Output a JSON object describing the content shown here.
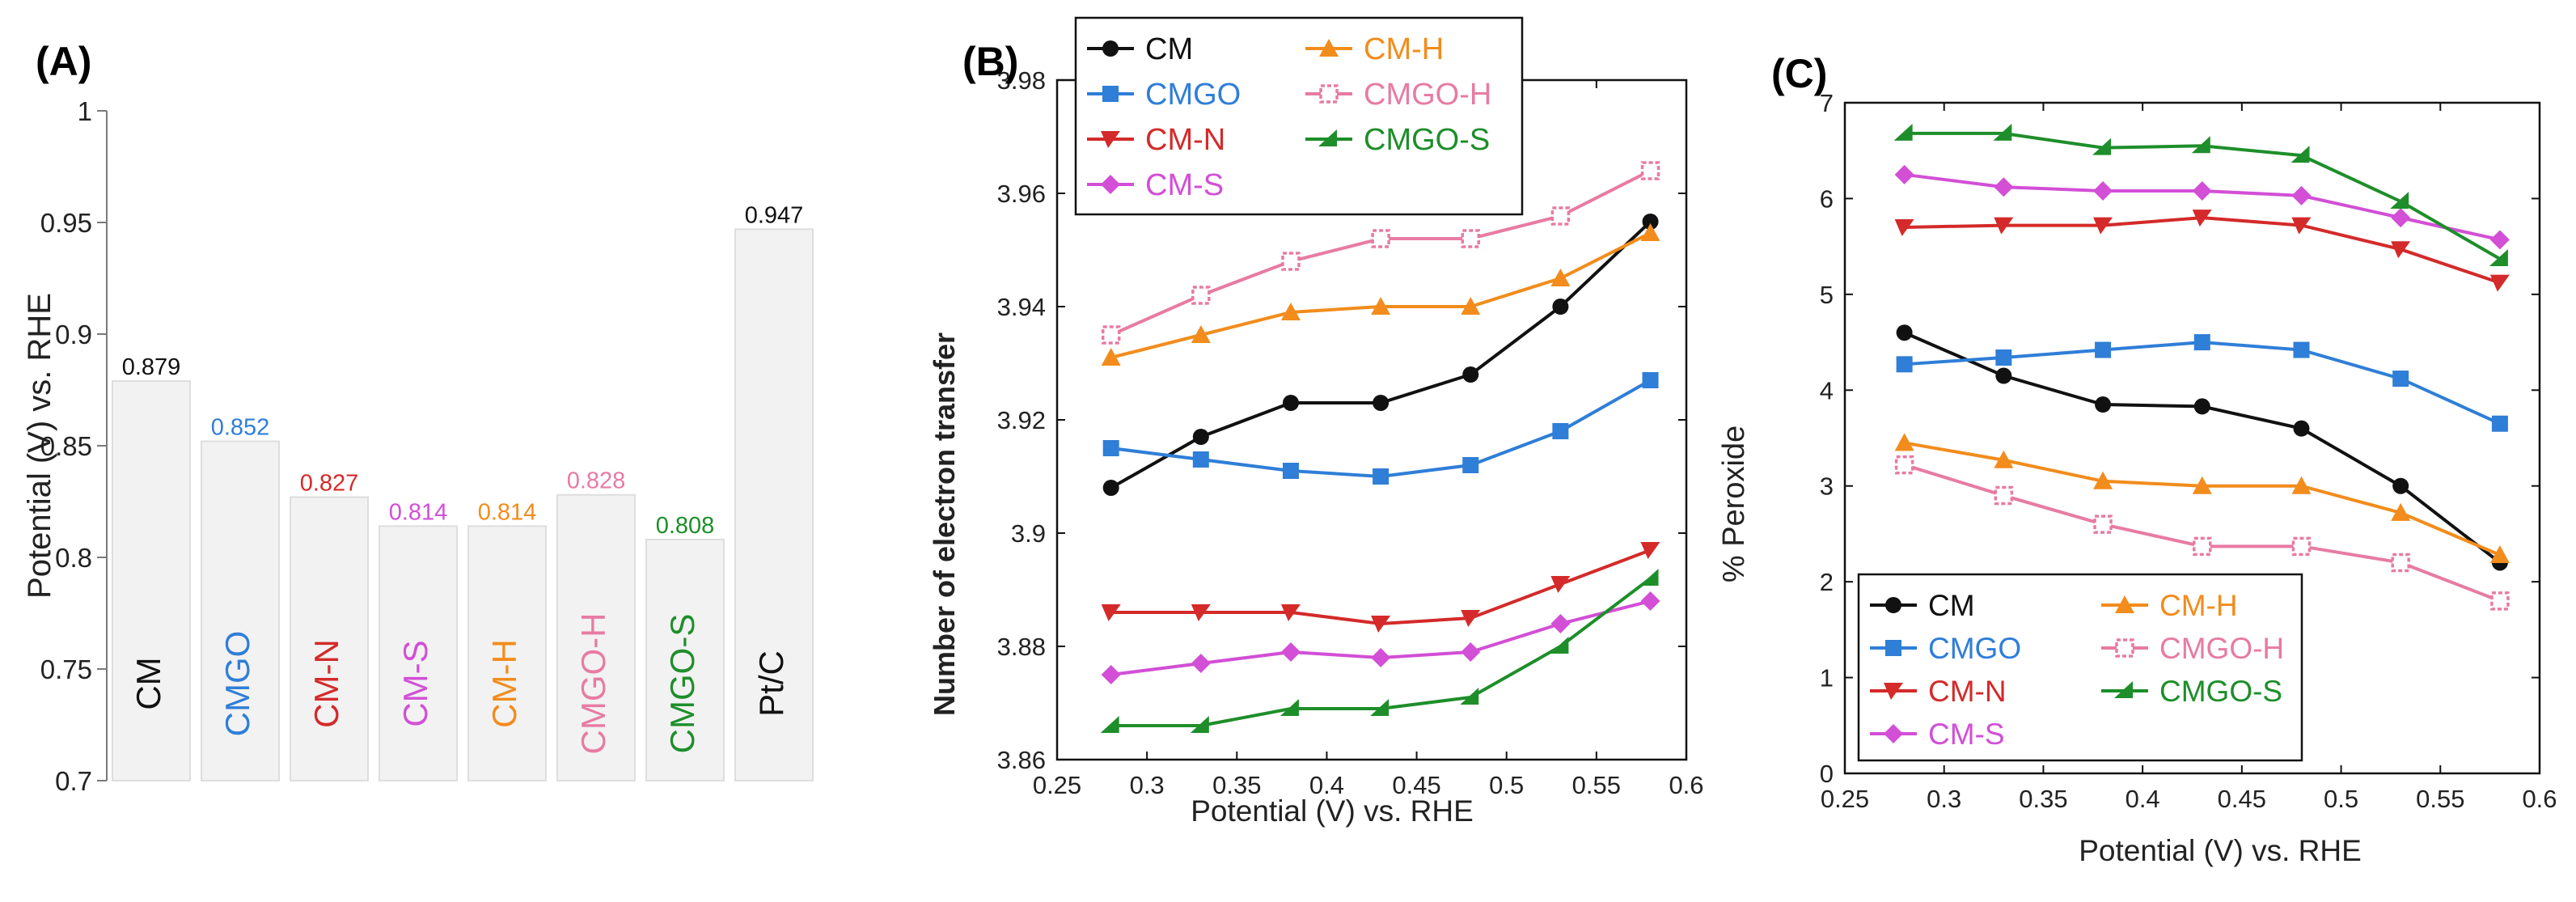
{
  "chart_data": [
    {
      "panel": "(A)",
      "type": "bar",
      "categories": [
        "CM",
        "CMGO",
        "CM-N",
        "CM-S",
        "CM-H",
        "CMGO-H",
        "CMGO-S",
        "Pt/C"
      ],
      "values": [
        0.879,
        0.852,
        0.827,
        0.814,
        0.814,
        0.828,
        0.808,
        0.947
      ],
      "value_labels": [
        "0.879",
        "0.852",
        "0.827",
        "0.814",
        "0.814",
        "0.828",
        "0.808",
        "0.947"
      ],
      "label_colors": [
        "#111111",
        "#2F7ED8",
        "#D42A2A",
        "#D24FD6",
        "#F28C1C",
        "#E77BA3",
        "#1E8E2A",
        "#111111"
      ],
      "ylabel": "Potential (V) vs. RHE",
      "xlabel": "",
      "ylim": [
        0.7,
        1.0
      ],
      "yticks": [
        "0.7",
        "0.75",
        "0.8",
        "0.85",
        "0.9",
        "0.95",
        "1"
      ],
      "ytick_values": [
        0.7,
        0.75,
        0.8,
        0.85,
        0.9,
        0.95,
        1.0
      ]
    },
    {
      "panel": "(B)",
      "type": "line",
      "x": [
        0.28,
        0.33,
        0.38,
        0.43,
        0.48,
        0.53,
        0.58
      ],
      "series": [
        {
          "name": "CM",
          "color": "#111111",
          "marker": "circle",
          "values": [
            3.908,
            3.917,
            3.923,
            3.923,
            3.928,
            3.94,
            3.955
          ]
        },
        {
          "name": "CMGO",
          "color": "#2F7ED8",
          "marker": "square",
          "values": [
            3.915,
            3.913,
            3.911,
            3.91,
            3.912,
            3.918,
            3.927
          ]
        },
        {
          "name": "CM-N",
          "color": "#D42A2A",
          "marker": "tri-down",
          "values": [
            3.886,
            3.886,
            3.886,
            3.884,
            3.885,
            3.891,
            3.897
          ]
        },
        {
          "name": "CM-S",
          "color": "#D24FD6",
          "marker": "diamond",
          "values": [
            3.875,
            3.877,
            3.879,
            3.878,
            3.879,
            3.884,
            3.888
          ]
        },
        {
          "name": "CM-H",
          "color": "#F28C1C",
          "marker": "triangle",
          "values": [
            3.931,
            3.935,
            3.939,
            3.94,
            3.94,
            3.945,
            3.953
          ]
        },
        {
          "name": "CMGO-H",
          "color": "#E77BA3",
          "marker": "open-square",
          "values": [
            3.935,
            3.942,
            3.948,
            3.952,
            3.952,
            3.956,
            3.964
          ]
        },
        {
          "name": "CMGO-S",
          "color": "#1E8E2A",
          "marker": "half-triangle",
          "values": [
            3.866,
            3.866,
            3.869,
            3.869,
            3.871,
            3.88,
            3.892
          ]
        }
      ],
      "title": "",
      "xlabel": "Potential (V) vs. RHE",
      "ylabel": "Number of electron transfer",
      "xlim": [
        0.25,
        0.6
      ],
      "ylim": [
        3.86,
        3.98
      ],
      "xticks": [
        "0.25",
        "0.3",
        "0.35",
        "0.4",
        "0.45",
        "0.5",
        "0.55",
        "0.6"
      ],
      "xtick_values": [
        0.25,
        0.3,
        0.35,
        0.4,
        0.45,
        0.5,
        0.55,
        0.6
      ],
      "yticks": [
        "3.86",
        "3.88",
        "3.9",
        "3.92",
        "3.94",
        "3.96",
        "3.98"
      ],
      "ytick_values": [
        3.86,
        3.88,
        3.9,
        3.92,
        3.94,
        3.96,
        3.98
      ],
      "legend": "top-left"
    },
    {
      "panel": "(C)",
      "type": "line",
      "x": [
        0.28,
        0.33,
        0.38,
        0.43,
        0.48,
        0.53,
        0.58
      ],
      "series": [
        {
          "name": "CM",
          "color": "#111111",
          "marker": "circle",
          "values": [
            4.6,
            4.15,
            3.85,
            3.83,
            3.6,
            3.0,
            2.2
          ]
        },
        {
          "name": "CMGO",
          "color": "#2F7ED8",
          "marker": "square",
          "values": [
            4.27,
            4.34,
            4.42,
            4.5,
            4.42,
            4.12,
            3.65
          ]
        },
        {
          "name": "CM-N",
          "color": "#D42A2A",
          "marker": "tri-down",
          "values": [
            5.7,
            5.72,
            5.72,
            5.8,
            5.72,
            5.47,
            5.12
          ]
        },
        {
          "name": "CM-S",
          "color": "#D24FD6",
          "marker": "diamond",
          "values": [
            6.25,
            6.12,
            6.08,
            6.08,
            6.03,
            5.8,
            5.57
          ]
        },
        {
          "name": "CM-H",
          "color": "#F28C1C",
          "marker": "triangle",
          "values": [
            3.45,
            3.27,
            3.05,
            3.0,
            3.0,
            2.72,
            2.28
          ]
        },
        {
          "name": "CMGO-H",
          "color": "#E77BA3",
          "marker": "open-square",
          "values": [
            3.22,
            2.9,
            2.6,
            2.37,
            2.37,
            2.2,
            1.8
          ]
        },
        {
          "name": "CMGO-S",
          "color": "#1E8E2A",
          "marker": "half-triangle",
          "values": [
            6.68,
            6.68,
            6.53,
            6.55,
            6.45,
            5.97,
            5.37
          ]
        }
      ],
      "title": "",
      "xlabel": "Potential (V) vs. RHE",
      "ylabel": "% Peroxide",
      "xlim": [
        0.25,
        0.6
      ],
      "ylim": [
        0,
        7
      ],
      "xticks": [
        "0.25",
        "0.3",
        "0.35",
        "0.4",
        "0.45",
        "0.5",
        "0.55",
        "0.6"
      ],
      "xtick_values": [
        0.25,
        0.3,
        0.35,
        0.4,
        0.45,
        0.5,
        0.55,
        0.6
      ],
      "yticks": [
        "0",
        "1",
        "2",
        "3",
        "4",
        "5",
        "6",
        "7"
      ],
      "ytick_values": [
        0,
        1,
        2,
        3,
        4,
        5,
        6,
        7
      ],
      "legend": "bottom-left"
    }
  ],
  "panel_labels": {
    "a": "(A)",
    "b": "(B)",
    "c": "(C)"
  }
}
